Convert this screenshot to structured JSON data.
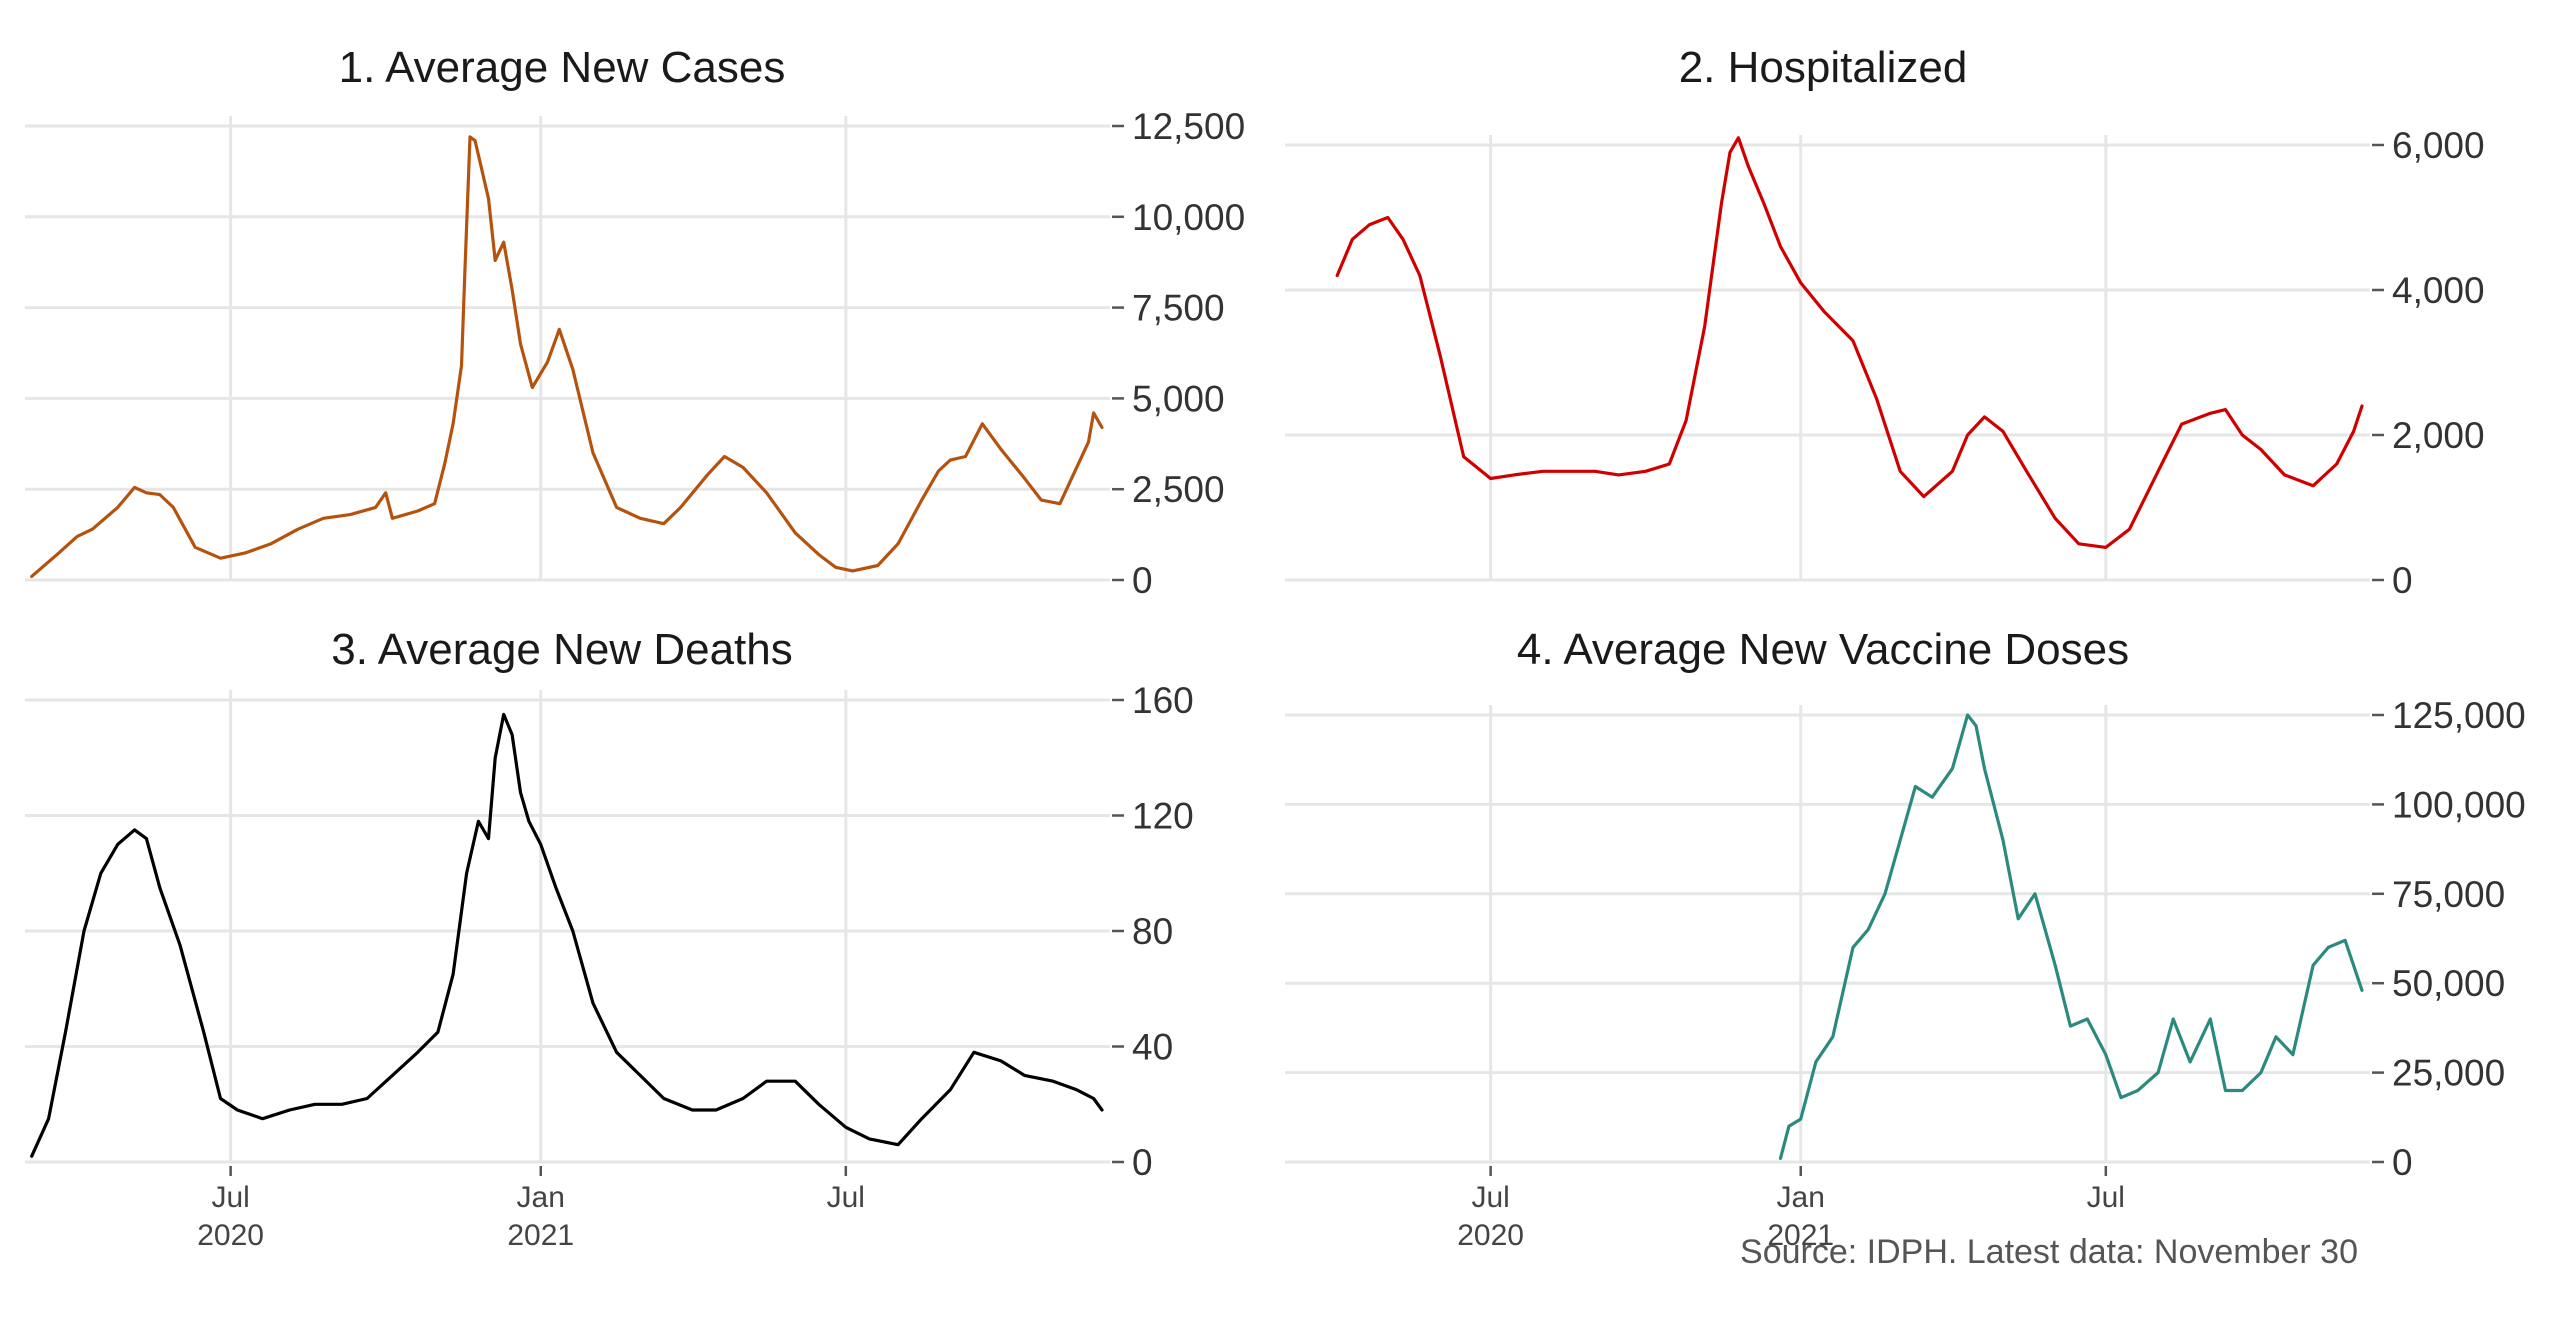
{
  "caption": "Source: IDPH. Latest data: November 30",
  "x_axis": {
    "start": "2020-03-01",
    "end": "2021-11-30",
    "ticks": [
      {
        "date": "2020-07-01",
        "label": "Jul",
        "year": "2020"
      },
      {
        "date": "2021-01-01",
        "label": "Jan",
        "year": "2021"
      },
      {
        "date": "2021-07-01",
        "label": "Jul",
        "year": ""
      }
    ]
  },
  "chart_data": [
    {
      "type": "line",
      "title": "1. Average New Cases",
      "color": "#b5530e",
      "xlabel": "",
      "ylabel": "",
      "ylim": [
        0,
        12500
      ],
      "yticks": [
        0,
        2500,
        5000,
        7500,
        10000,
        12500
      ],
      "ytick_labels": [
        "0",
        "2,500",
        "5,000",
        "7,500",
        "10,000",
        "12,500"
      ],
      "grid": true,
      "x": [
        "2020-03-05",
        "2020-03-20",
        "2020-04-01",
        "2020-04-10",
        "2020-04-25",
        "2020-05-05",
        "2020-05-12",
        "2020-05-20",
        "2020-05-28",
        "2020-06-10",
        "2020-06-25",
        "2020-07-10",
        "2020-07-25",
        "2020-08-10",
        "2020-08-25",
        "2020-09-10",
        "2020-09-25",
        "2020-10-01",
        "2020-10-05",
        "2020-10-20",
        "2020-10-30",
        "2020-11-05",
        "2020-11-10",
        "2020-11-15",
        "2020-11-17",
        "2020-11-20",
        "2020-11-23",
        "2020-11-26",
        "2020-12-01",
        "2020-12-05",
        "2020-12-10",
        "2020-12-15",
        "2020-12-20",
        "2020-12-27",
        "2021-01-05",
        "2021-01-12",
        "2021-01-20",
        "2021-02-01",
        "2021-02-15",
        "2021-03-01",
        "2021-03-15",
        "2021-03-25",
        "2021-04-10",
        "2021-04-20",
        "2021-05-01",
        "2021-05-15",
        "2021-06-01",
        "2021-06-15",
        "2021-06-25",
        "2021-07-05",
        "2021-07-20",
        "2021-08-01",
        "2021-08-15",
        "2021-08-25",
        "2021-09-01",
        "2021-09-10",
        "2021-09-20",
        "2021-10-01",
        "2021-10-15",
        "2021-10-25",
        "2021-11-05",
        "2021-11-15",
        "2021-11-22",
        "2021-11-25",
        "2021-11-30"
      ],
      "values": [
        100,
        700,
        1200,
        1400,
        2000,
        2550,
        2400,
        2350,
        2000,
        900,
        600,
        750,
        1000,
        1400,
        1700,
        1800,
        2000,
        2400,
        1700,
        1900,
        2100,
        3200,
        4300,
        5900,
        8500,
        12200,
        12100,
        11500,
        10500,
        8800,
        9300,
        8000,
        6500,
        5300,
        6000,
        6900,
        5800,
        3500,
        2000,
        1700,
        1550,
        2000,
        2900,
        3400,
        3100,
        2400,
        1300,
        700,
        350,
        250,
        400,
        1000,
        2200,
        3000,
        3300,
        3400,
        4300,
        3600,
        2800,
        2200,
        2100,
        3100,
        3800,
        4600,
        4200
      ]
    },
    {
      "type": "line",
      "title": "2. Hospitalized",
      "color": "#d10000",
      "xlabel": "",
      "ylabel": "",
      "ylim": [
        0,
        6000
      ],
      "yticks": [
        0,
        2000,
        4000,
        6000
      ],
      "ytick_labels": [
        "0",
        "2,000",
        "4,000",
        "6,000"
      ],
      "grid": true,
      "x": [
        "2020-04-01",
        "2020-04-10",
        "2020-04-20",
        "2020-05-01",
        "2020-05-10",
        "2020-05-20",
        "2020-06-01",
        "2020-06-15",
        "2020-07-01",
        "2020-07-15",
        "2020-08-01",
        "2020-08-15",
        "2020-09-01",
        "2020-09-15",
        "2020-10-01",
        "2020-10-15",
        "2020-10-25",
        "2020-11-05",
        "2020-11-15",
        "2020-11-20",
        "2020-11-25",
        "2020-12-01",
        "2020-12-10",
        "2020-12-20",
        "2021-01-01",
        "2021-01-15",
        "2021-02-01",
        "2021-02-15",
        "2021-03-01",
        "2021-03-15",
        "2021-04-01",
        "2021-04-10",
        "2021-04-20",
        "2021-05-01",
        "2021-05-15",
        "2021-06-01",
        "2021-06-15",
        "2021-07-01",
        "2021-07-15",
        "2021-08-01",
        "2021-08-15",
        "2021-09-01",
        "2021-09-10",
        "2021-09-20",
        "2021-10-01",
        "2021-10-15",
        "2021-11-01",
        "2021-11-15",
        "2021-11-25",
        "2021-11-30"
      ],
      "values": [
        4200,
        4700,
        4900,
        5000,
        4700,
        4200,
        3100,
        1700,
        1400,
        1450,
        1500,
        1500,
        1500,
        1450,
        1500,
        1600,
        2200,
        3500,
        5200,
        5900,
        6100,
        5700,
        5200,
        4600,
        4100,
        3700,
        3300,
        2500,
        1500,
        1150,
        1500,
        2000,
        2250,
        2050,
        1500,
        850,
        500,
        450,
        700,
        1500,
        2150,
        2300,
        2350,
        2000,
        1800,
        1450,
        1300,
        1600,
        2050,
        2400
      ]
    },
    {
      "type": "line",
      "title": "3. Average New Deaths",
      "color": "#000000",
      "xlabel": "",
      "ylabel": "",
      "ylim": [
        0,
        160
      ],
      "yticks": [
        0,
        40,
        80,
        120,
        160
      ],
      "ytick_labels": [
        "0",
        "40",
        "80",
        "120",
        "160"
      ],
      "grid": true,
      "x": [
        "2020-03-05",
        "2020-03-15",
        "2020-03-25",
        "2020-04-05",
        "2020-04-15",
        "2020-04-25",
        "2020-05-05",
        "2020-05-12",
        "2020-05-20",
        "2020-06-01",
        "2020-06-15",
        "2020-06-25",
        "2020-07-05",
        "2020-07-20",
        "2020-08-05",
        "2020-08-20",
        "2020-09-05",
        "2020-09-20",
        "2020-10-05",
        "2020-10-20",
        "2020-11-01",
        "2020-11-10",
        "2020-11-18",
        "2020-11-25",
        "2020-12-01",
        "2020-12-05",
        "2020-12-10",
        "2020-12-15",
        "2020-12-20",
        "2020-12-25",
        "2021-01-01",
        "2021-01-10",
        "2021-01-20",
        "2021-02-01",
        "2021-02-15",
        "2021-03-01",
        "2021-03-15",
        "2021-04-01",
        "2021-04-15",
        "2021-05-01",
        "2021-05-15",
        "2021-06-01",
        "2021-06-15",
        "2021-07-01",
        "2021-07-15",
        "2021-08-01",
        "2021-08-15",
        "2021-09-01",
        "2021-09-15",
        "2021-10-01",
        "2021-10-15",
        "2021-11-01",
        "2021-11-15",
        "2021-11-25",
        "2021-11-30"
      ],
      "values": [
        2,
        15,
        45,
        80,
        100,
        110,
        115,
        112,
        95,
        75,
        45,
        22,
        18,
        15,
        18,
        20,
        20,
        22,
        30,
        38,
        45,
        65,
        100,
        118,
        112,
        140,
        155,
        148,
        128,
        118,
        110,
        95,
        80,
        55,
        38,
        30,
        22,
        18,
        18,
        22,
        28,
        28,
        20,
        12,
        8,
        6,
        15,
        25,
        38,
        35,
        30,
        28,
        25,
        22,
        18
      ]
    },
    {
      "type": "line",
      "title": "4. Average New Vaccine Doses",
      "color": "#2b8a7d",
      "xlabel": "",
      "ylabel": "",
      "ylim": [
        0,
        125000
      ],
      "yticks": [
        0,
        25000,
        50000,
        75000,
        100000,
        125000
      ],
      "ytick_labels": [
        "0",
        "25,000",
        "50,000",
        "75,000",
        "100,000",
        "125,000"
      ],
      "grid": true,
      "x": [
        "2020-12-20",
        "2020-12-25",
        "2021-01-01",
        "2021-01-10",
        "2021-01-20",
        "2021-02-01",
        "2021-02-10",
        "2021-02-20",
        "2021-03-01",
        "2021-03-10",
        "2021-03-20",
        "2021-04-01",
        "2021-04-10",
        "2021-04-15",
        "2021-04-20",
        "2021-05-01",
        "2021-05-10",
        "2021-05-20",
        "2021-06-01",
        "2021-06-10",
        "2021-06-20",
        "2021-07-01",
        "2021-07-10",
        "2021-07-20",
        "2021-08-01",
        "2021-08-10",
        "2021-08-20",
        "2021-09-01",
        "2021-09-10",
        "2021-09-20",
        "2021-10-01",
        "2021-10-10",
        "2021-10-20",
        "2021-11-01",
        "2021-11-10",
        "2021-11-20",
        "2021-11-30"
      ],
      "values": [
        1000,
        10000,
        12000,
        28000,
        35000,
        60000,
        65000,
        75000,
        90000,
        105000,
        102000,
        110000,
        125000,
        122000,
        110000,
        90000,
        68000,
        75000,
        55000,
        38000,
        40000,
        30000,
        18000,
        20000,
        25000,
        40000,
        28000,
        40000,
        20000,
        20000,
        25000,
        35000,
        30000,
        55000,
        60000,
        62000,
        48000
      ]
    }
  ]
}
